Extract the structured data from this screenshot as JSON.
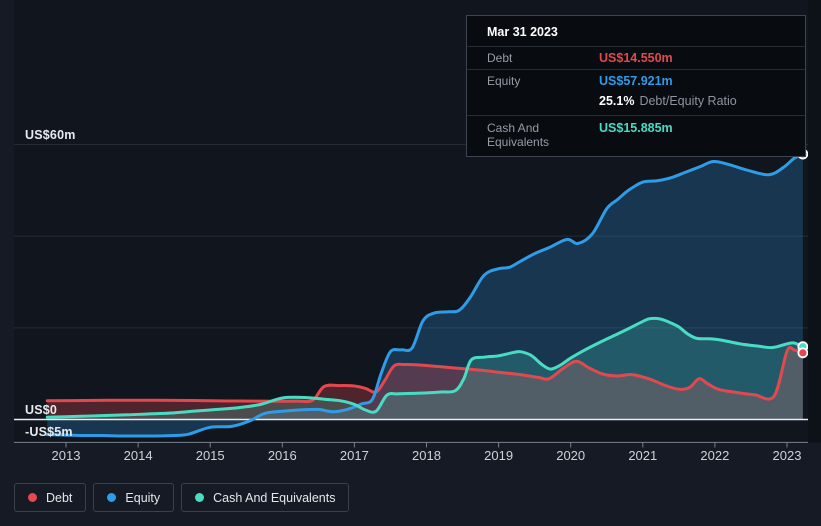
{
  "tooltip": {
    "date": "Mar 31 2023",
    "rows": {
      "debt": {
        "label": "Debt",
        "value": "US$14.550m",
        "color": "#e2494e"
      },
      "equity": {
        "label": "Equity",
        "value": "US$57.921m",
        "color": "#2f9ce8"
      },
      "ratio": {
        "value": "25.1%",
        "label": "Debt/Equity Ratio"
      },
      "cash": {
        "label": "Cash And Equivalents",
        "value": "US$15.885m",
        "color": "#49dcc3"
      }
    }
  },
  "legend": {
    "items": [
      {
        "label": "Debt",
        "color": "#e5484d"
      },
      {
        "label": "Equity",
        "color": "#2f9ce8"
      },
      {
        "label": "Cash And Equivalents",
        "color": "#49dcc3"
      }
    ]
  },
  "chart_data": {
    "type": "area",
    "title": "",
    "xlabel": "",
    "ylabel": "",
    "legend_position": "bottom-left",
    "grid": true,
    "x_ticks": [
      "2013",
      "2014",
      "2015",
      "2016",
      "2017",
      "2018",
      "2019",
      "2020",
      "2021",
      "2022",
      "2023"
    ],
    "y_axis_labels": [
      {
        "text": "US$60m",
        "value": 60
      },
      {
        "text": "US$0",
        "value": 0
      },
      {
        "text": "-US$5m",
        "value": -5
      }
    ],
    "y_gridlines": [
      60,
      40,
      20
    ],
    "xlim": [
      2012.72,
      2023.3
    ],
    "ylim": [
      -5,
      62
    ],
    "units": "US$ millions",
    "series": [
      {
        "name": "Equity",
        "color": "#2f9ce8",
        "fill": "rgba(47,156,232,0.25)",
        "points": [
          [
            2012.74,
            -3.3
          ],
          [
            2013.0,
            -3.4
          ],
          [
            2013.25,
            -3.5
          ],
          [
            2013.5,
            -3.5
          ],
          [
            2013.75,
            -3.6
          ],
          [
            2014.0,
            -3.6
          ],
          [
            2014.25,
            -3.6
          ],
          [
            2014.5,
            -3.5
          ],
          [
            2014.7,
            -3.2
          ],
          [
            2015.0,
            -1.7
          ],
          [
            2015.3,
            -1.5
          ],
          [
            2015.55,
            -0.3
          ],
          [
            2015.75,
            1.3
          ],
          [
            2016.0,
            1.8
          ],
          [
            2016.25,
            2.1
          ],
          [
            2016.5,
            2.2
          ],
          [
            2016.7,
            1.7
          ],
          [
            2016.9,
            2.2
          ],
          [
            2017.1,
            3.4
          ],
          [
            2017.25,
            4.4
          ],
          [
            2017.37,
            10.0
          ],
          [
            2017.5,
            14.8
          ],
          [
            2017.65,
            15.2
          ],
          [
            2017.8,
            15.6
          ],
          [
            2017.95,
            21.5
          ],
          [
            2018.1,
            23.2
          ],
          [
            2018.3,
            23.5
          ],
          [
            2018.45,
            23.8
          ],
          [
            2018.6,
            26.5
          ],
          [
            2018.8,
            31.5
          ],
          [
            2019.0,
            32.9
          ],
          [
            2019.15,
            33.2
          ],
          [
            2019.3,
            34.5
          ],
          [
            2019.5,
            36.2
          ],
          [
            2019.7,
            37.5
          ],
          [
            2019.95,
            39.3
          ],
          [
            2020.1,
            38.4
          ],
          [
            2020.3,
            40.5
          ],
          [
            2020.5,
            46.0
          ],
          [
            2020.65,
            48.0
          ],
          [
            2020.8,
            50.0
          ],
          [
            2021.0,
            51.8
          ],
          [
            2021.2,
            52.1
          ],
          [
            2021.4,
            52.8
          ],
          [
            2021.6,
            54.0
          ],
          [
            2021.8,
            55.2
          ],
          [
            2021.98,
            56.3
          ],
          [
            2022.2,
            55.6
          ],
          [
            2022.45,
            54.4
          ],
          [
            2022.75,
            53.4
          ],
          [
            2022.95,
            55.0
          ],
          [
            2023.1,
            57.0
          ],
          [
            2023.22,
            57.921
          ]
        ]
      },
      {
        "name": "Debt",
        "color": "#e2494e",
        "fill": "rgba(226,73,78,0.30)",
        "points": [
          [
            2012.74,
            4.1
          ],
          [
            2013.25,
            4.15
          ],
          [
            2013.75,
            4.2
          ],
          [
            2014.25,
            4.2
          ],
          [
            2014.75,
            4.15
          ],
          [
            2015.25,
            4.05
          ],
          [
            2015.75,
            4.0
          ],
          [
            2016.2,
            4.0
          ],
          [
            2016.42,
            4.2
          ],
          [
            2016.58,
            7.2
          ],
          [
            2016.8,
            7.4
          ],
          [
            2017.0,
            7.3
          ],
          [
            2017.15,
            6.8
          ],
          [
            2017.3,
            6.0
          ],
          [
            2017.42,
            8.5
          ],
          [
            2017.55,
            11.7
          ],
          [
            2017.7,
            12.0
          ],
          [
            2017.9,
            11.9
          ],
          [
            2018.2,
            11.5
          ],
          [
            2018.5,
            11.1
          ],
          [
            2018.8,
            10.7
          ],
          [
            2019.0,
            10.3
          ],
          [
            2019.3,
            9.8
          ],
          [
            2019.55,
            9.2
          ],
          [
            2019.7,
            8.9
          ],
          [
            2019.9,
            11.2
          ],
          [
            2020.08,
            12.7
          ],
          [
            2020.25,
            11.3
          ],
          [
            2020.45,
            9.9
          ],
          [
            2020.65,
            9.5
          ],
          [
            2020.85,
            9.8
          ],
          [
            2021.1,
            8.8
          ],
          [
            2021.3,
            7.5
          ],
          [
            2021.5,
            6.6
          ],
          [
            2021.65,
            7.0
          ],
          [
            2021.78,
            8.9
          ],
          [
            2021.9,
            7.8
          ],
          [
            2022.05,
            6.6
          ],
          [
            2022.3,
            5.9
          ],
          [
            2022.55,
            5.4
          ],
          [
            2022.82,
            5.1
          ],
          [
            2023.0,
            14.9
          ],
          [
            2023.1,
            15.2
          ],
          [
            2023.22,
            14.55
          ]
        ]
      },
      {
        "name": "Cash And Equivalents",
        "color": "#49dcc3",
        "fill": "rgba(73,220,195,0.22)",
        "points": [
          [
            2012.74,
            0.5
          ],
          [
            2013.0,
            0.6
          ],
          [
            2013.3,
            0.75
          ],
          [
            2013.6,
            0.9
          ],
          [
            2013.9,
            1.05
          ],
          [
            2014.2,
            1.25
          ],
          [
            2014.5,
            1.45
          ],
          [
            2014.8,
            1.85
          ],
          [
            2015.1,
            2.2
          ],
          [
            2015.4,
            2.6
          ],
          [
            2015.7,
            3.3
          ],
          [
            2016.0,
            4.7
          ],
          [
            2016.3,
            4.8
          ],
          [
            2016.6,
            4.4
          ],
          [
            2016.8,
            4.1
          ],
          [
            2017.0,
            3.3
          ],
          [
            2017.15,
            2.1
          ],
          [
            2017.3,
            1.8
          ],
          [
            2017.45,
            5.3
          ],
          [
            2017.6,
            5.6
          ],
          [
            2017.8,
            5.7
          ],
          [
            2018.0,
            5.8
          ],
          [
            2018.2,
            6.0
          ],
          [
            2018.4,
            6.3
          ],
          [
            2018.52,
            9.0
          ],
          [
            2018.62,
            13.0
          ],
          [
            2018.8,
            13.6
          ],
          [
            2019.0,
            13.9
          ],
          [
            2019.2,
            14.6
          ],
          [
            2019.3,
            14.8
          ],
          [
            2019.45,
            14.0
          ],
          [
            2019.6,
            12.0
          ],
          [
            2019.72,
            11.0
          ],
          [
            2019.85,
            11.8
          ],
          [
            2020.0,
            13.4
          ],
          [
            2020.2,
            15.2
          ],
          [
            2020.4,
            16.8
          ],
          [
            2020.6,
            18.3
          ],
          [
            2020.8,
            19.8
          ],
          [
            2021.0,
            21.4
          ],
          [
            2021.1,
            22.0
          ],
          [
            2021.25,
            21.9
          ],
          [
            2021.4,
            21.0
          ],
          [
            2021.5,
            20.2
          ],
          [
            2021.62,
            18.7
          ],
          [
            2021.75,
            17.7
          ],
          [
            2021.95,
            17.6
          ],
          [
            2022.1,
            17.3
          ],
          [
            2022.35,
            16.5
          ],
          [
            2022.6,
            16.0
          ],
          [
            2022.8,
            15.7
          ],
          [
            2023.0,
            16.5
          ],
          [
            2023.1,
            16.7
          ],
          [
            2023.22,
            15.885
          ]
        ]
      }
    ]
  }
}
